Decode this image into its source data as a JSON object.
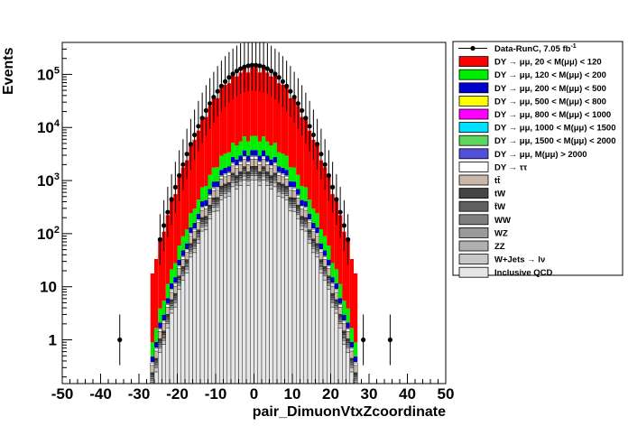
{
  "chart_data": {
    "type": "histogram-stack",
    "xlabel": "pair_DimuonVtxZcoordinate",
    "ylabel": "Events",
    "xlim": [
      -50,
      50
    ],
    "ylim": [
      0.15,
      400000
    ],
    "ylog": true,
    "grid": false,
    "legend_position": "right",
    "x_ticks": [
      "-50",
      "-40",
      "-30",
      "-20",
      "-10",
      "0",
      "10",
      "20",
      "30",
      "40",
      "50"
    ],
    "y_ticks": [
      {
        "value": 1,
        "base": "1",
        "exp": ""
      },
      {
        "value": 10,
        "base": "10",
        "exp": ""
      },
      {
        "value": 100,
        "base": "10",
        "exp": "2"
      },
      {
        "value": 1000,
        "base": "10",
        "exp": "3"
      },
      {
        "value": 10000,
        "base": "10",
        "exp": "4"
      },
      {
        "value": 100000,
        "base": "10",
        "exp": "5"
      }
    ],
    "bin_width": 1,
    "peak": 130000,
    "sigma": 6.3,
    "data_points": [
      {
        "x": -35,
        "y": 1
      },
      {
        "x": 28.5,
        "y": 1
      },
      {
        "x": 35.5,
        "y": 1
      }
    ],
    "series": [
      {
        "name": "Inclusive QCD",
        "color": "#e6e6e6",
        "fraction": 0.0075
      },
      {
        "name": "W+Jets → lν",
        "color": "#c8c8c8",
        "fraction": 0.0015
      },
      {
        "name": "ZZ",
        "color": "#b0b0b0",
        "fraction": 0.0008
      },
      {
        "name": "WZ",
        "color": "#9a9a9a",
        "fraction": 0.0007
      },
      {
        "name": "WW",
        "color": "#7f7f7f",
        "fraction": 0.001
      },
      {
        "name": "t̄W",
        "color": "#5f5f5f",
        "fraction": 0.001
      },
      {
        "name": "tW",
        "color": "#444444",
        "fraction": 0.001
      },
      {
        "name": "tt̄",
        "color": "#c9b8aa",
        "fraction": 0.005
      },
      {
        "name": "DY → ττ",
        "color": "#ffffff",
        "fraction": 0.002
      },
      {
        "name": "DY → μμ, M(μμ) > 2000",
        "color": "#5050d8",
        "fraction": 0.0001
      },
      {
        "name": "DY → μμ, 1500 < M(μμ) < 2000",
        "color": "#5cd65c",
        "fraction": 0.0001
      },
      {
        "name": "DY → μμ, 1000 < M(μμ) < 1500",
        "color": "#00e0ff",
        "fraction": 0.0001
      },
      {
        "name": "DY → μμ, 800 < M(μμ) < 1000",
        "color": "#ff00ff",
        "fraction": 0.0001
      },
      {
        "name": "DY → μμ, 500 < M(μμ) < 800",
        "color": "#ffff00",
        "fraction": 0.0004
      },
      {
        "name": "DY → μμ, 200 < M(μμ) < 500",
        "color": "#0000cc",
        "fraction": 0.006
      },
      {
        "name": "DY → μμ, 120 < M(μμ) < 200",
        "color": "#00ee00",
        "fraction": 0.023
      },
      {
        "name": "DY → μμ, 20 < M(μμ) < 120",
        "color": "#ff0000",
        "fraction": 0.9497
      }
    ],
    "legend": [
      {
        "label": "Data-RunC, 7.05 fb",
        "sup": "-1",
        "style": "marker",
        "color": "#000000"
      },
      {
        "label": "DY → μμ, 20 < M(μμ) <  120",
        "style": "box",
        "color": "#ff0000"
      },
      {
        "label": "DY → μμ, 120 < M(μμ) <  200",
        "style": "box",
        "color": "#00ee00"
      },
      {
        "label": "DY → μμ, 200 < M(μμ) <  500",
        "style": "box",
        "color": "#0000cc"
      },
      {
        "label": "DY → μμ, 500 < M(μμ) <  800",
        "style": "box",
        "color": "#ffff00"
      },
      {
        "label": "DY → μμ, 800 < M(μμ) < 1000",
        "style": "box",
        "color": "#ff00ff"
      },
      {
        "label": "DY → μμ, 1000 < M(μμ) < 1500",
        "style": "box",
        "color": "#00e0ff"
      },
      {
        "label": "DY → μμ, 1500 < M(μμ) < 2000",
        "style": "box",
        "color": "#5cd65c"
      },
      {
        "label": "DY → μμ, M(μμ) > 2000",
        "style": "box",
        "color": "#5050d8"
      },
      {
        "label": "DY → ττ",
        "style": "box",
        "color": "#ffffff"
      },
      {
        "label": "tt̄",
        "style": "box",
        "color": "#c9b8aa"
      },
      {
        "label": "tW",
        "style": "box",
        "color": "#444444"
      },
      {
        "label": "t̄W",
        "style": "box",
        "color": "#5f5f5f"
      },
      {
        "label": "WW",
        "style": "box",
        "color": "#7f7f7f"
      },
      {
        "label": "WZ",
        "style": "box",
        "color": "#9a9a9a"
      },
      {
        "label": "ZZ",
        "style": "box",
        "color": "#b0b0b0"
      },
      {
        "label": "W+Jets → lν",
        "style": "box",
        "color": "#c8c8c8"
      },
      {
        "label": "Inclusive QCD",
        "style": "box",
        "color": "#e6e6e6"
      }
    ]
  }
}
